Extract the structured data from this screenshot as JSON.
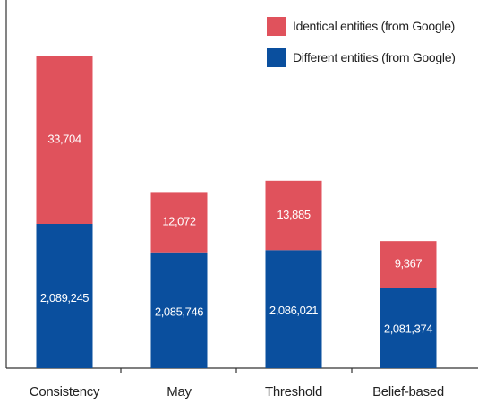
{
  "chart_data": {
    "type": "bar",
    "stacked": true,
    "categories": [
      "Consistency",
      "May",
      "Threshold",
      "Belief-based"
    ],
    "series": [
      {
        "name": "Different entities (from Google)",
        "values": [
          2089245,
          2085746,
          2086021,
          2081374
        ],
        "labels": [
          "2,089,245",
          "2,085,746",
          "2,086,021",
          "2,081,374"
        ],
        "color": "#0a4f9e"
      },
      {
        "name": "Identical entities (from Google)",
        "values": [
          33704,
          12072,
          13885,
          9367
        ],
        "labels": [
          "33,704",
          "12,072",
          "13,885",
          "9,367"
        ],
        "color": "#e0525c"
      }
    ],
    "legend_order": [
      "Identical entities (from Google)",
      "Different entities (from Google)"
    ],
    "legend_position": "top-right",
    "title": "",
    "xlabel": "",
    "ylabel": "",
    "grid": false
  }
}
